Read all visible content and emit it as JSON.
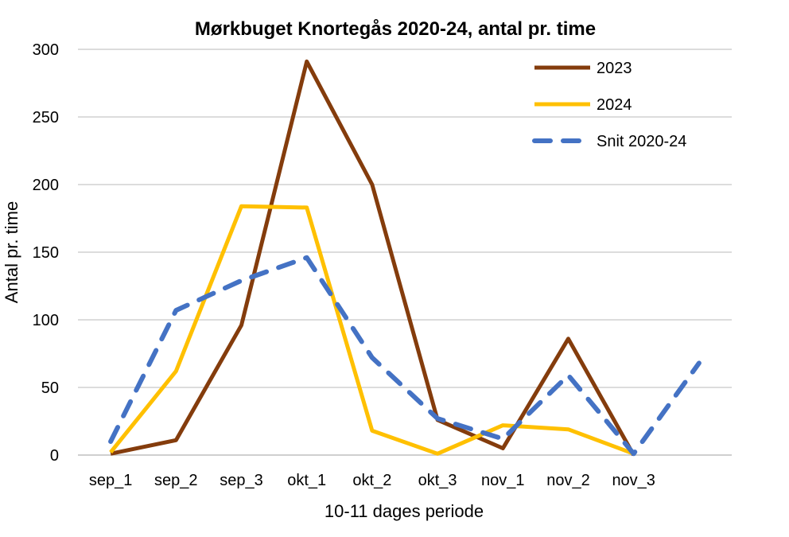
{
  "chart_data": {
    "type": "line",
    "title": "Mørkbuget Knortegås 2020-24, antal pr. time",
    "xlabel": "10-11 dages periode",
    "ylabel": "Antal pr. time",
    "ylim": [
      0,
      300
    ],
    "yticks": [
      0,
      50,
      100,
      150,
      200,
      250,
      300
    ],
    "categories": [
      "sep_1",
      "sep_2",
      "sep_3",
      "okt_1",
      "okt_2",
      "okt_3",
      "nov_1",
      "nov_2",
      "nov_3",
      ""
    ],
    "grid": true,
    "legend_position": "top-right",
    "series": [
      {
        "name": "2023",
        "color": "#843C0C",
        "dash": "solid",
        "values": [
          1,
          11,
          96,
          291,
          200,
          26,
          5,
          86,
          0,
          null
        ]
      },
      {
        "name": "2024",
        "color": "#FFC000",
        "dash": "solid",
        "values": [
          2,
          62,
          184,
          183,
          18,
          1,
          22,
          19,
          1,
          null
        ]
      },
      {
        "name": "Snit 2020-24",
        "color": "#4472C4",
        "dash": "dashed",
        "values": [
          10,
          107,
          129,
          146,
          72,
          27,
          12,
          59,
          1,
          68
        ]
      }
    ]
  }
}
